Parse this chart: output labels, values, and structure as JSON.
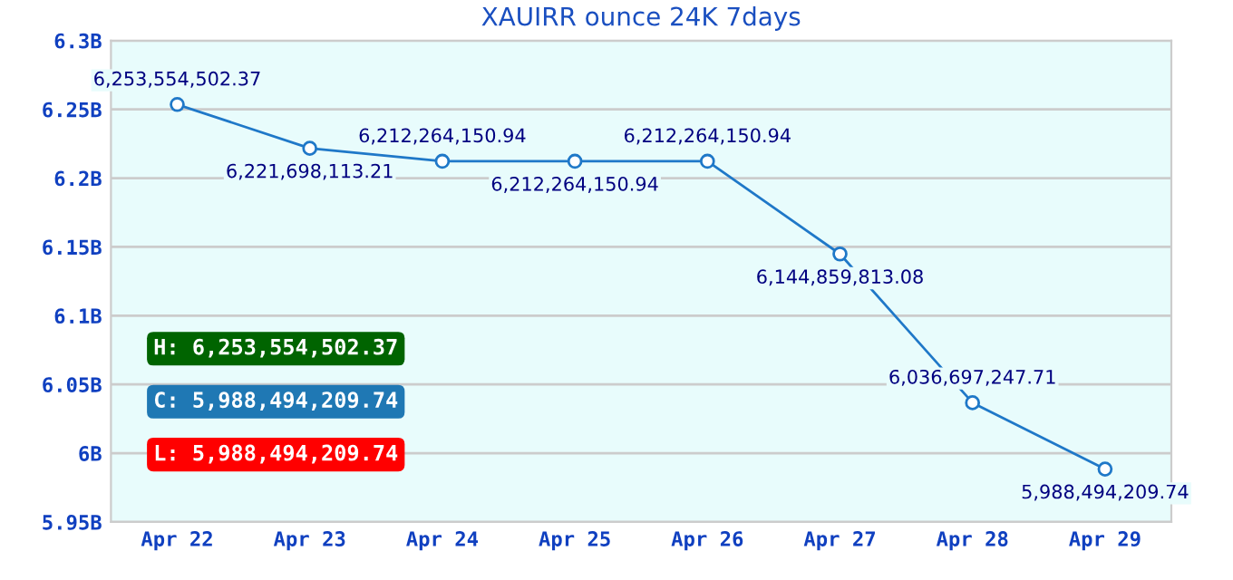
{
  "chart_data": {
    "type": "line",
    "title": "XAUIRR ounce 24K 7days",
    "categories": [
      "Apr 22",
      "Apr 23",
      "Apr 24",
      "Apr 25",
      "Apr 26",
      "Apr 27",
      "Apr 28",
      "Apr 29"
    ],
    "series": [
      {
        "color": "#1f78c8",
        "values": [
          6253554502.37,
          6221698113.21,
          6212264150.94,
          6212264150.94,
          6212264150.94,
          6144859813.08,
          6036697247.71,
          5988494209.74
        ],
        "value_labels": [
          "6,253,554,502.37",
          "6,221,698,113.21",
          "6,212,264,150.94",
          "6,212,264,150.94",
          "6,212,264,150.94",
          "6,144,859,813.08",
          "6,036,697,247.71",
          "5,988,494,209.74"
        ]
      }
    ],
    "ylim": [
      5950000000,
      6300000000
    ],
    "yticks": [
      {
        "value": 5950000000,
        "label": "5.95B"
      },
      {
        "value": 6000000000,
        "label": "6B"
      },
      {
        "value": 6050000000,
        "label": "6.05B"
      },
      {
        "value": 6100000000,
        "label": "6.1B"
      },
      {
        "value": 6150000000,
        "label": "6.15B"
      },
      {
        "value": 6200000000,
        "label": "6.2B"
      },
      {
        "value": 6250000000,
        "label": "6.25B"
      },
      {
        "value": 6300000000,
        "label": "6.3B"
      }
    ],
    "grid": "y",
    "marker": "circle",
    "line_style": "solid",
    "legend": false,
    "annotations": [
      "H: 6,253,554,502.37",
      "C: 5,988,494,209.74",
      "L: 5,988,494,209.74"
    ]
  }
}
